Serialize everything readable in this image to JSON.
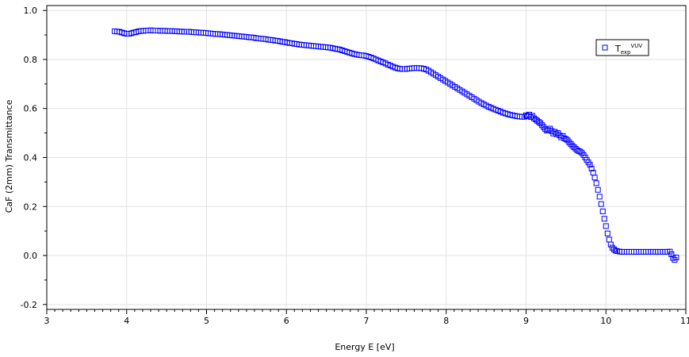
{
  "chart_data": {
    "type": "scatter",
    "title": "",
    "xlabel": "Energy E [eV]",
    "ylabel": "CaF (2mm) Transmittance",
    "xlim": [
      3,
      11
    ],
    "ylim": [
      -0.22,
      1.02
    ],
    "x_ticks": [
      3,
      4,
      5,
      6,
      7,
      8,
      9,
      10,
      11
    ],
    "x_tick_labels": [
      "3",
      "4",
      "5",
      "6",
      "7",
      "8",
      "9",
      "10",
      "11"
    ],
    "y_ticks": [
      -0.2,
      0.0,
      0.2,
      0.4,
      0.6,
      0.8,
      1.0
    ],
    "y_tick_labels": [
      "-0.2",
      "0.0",
      "0.2",
      "0.4",
      "0.6",
      "0.8",
      "1.0"
    ],
    "grid": true,
    "legend_position": "top-right",
    "series": [
      {
        "name_base": "T",
        "name_sub": "exp",
        "name_sup": "VUV",
        "color": "#0000ff",
        "marker": "open-square",
        "points": [
          [
            3.85,
            0.915
          ],
          [
            3.88,
            0.914
          ],
          [
            3.91,
            0.913
          ],
          [
            3.94,
            0.91
          ],
          [
            3.97,
            0.907
          ],
          [
            4.0,
            0.905
          ],
          [
            4.03,
            0.905
          ],
          [
            4.06,
            0.907
          ],
          [
            4.09,
            0.91
          ],
          [
            4.12,
            0.912
          ],
          [
            4.15,
            0.915
          ],
          [
            4.18,
            0.916
          ],
          [
            4.21,
            0.917
          ],
          [
            4.24,
            0.918
          ],
          [
            4.27,
            0.918
          ],
          [
            4.3,
            0.919
          ],
          [
            4.33,
            0.918
          ],
          [
            4.36,
            0.918
          ],
          [
            4.39,
            0.918
          ],
          [
            4.42,
            0.917
          ],
          [
            4.45,
            0.917
          ],
          [
            4.48,
            0.917
          ],
          [
            4.51,
            0.916
          ],
          [
            4.54,
            0.916
          ],
          [
            4.57,
            0.916
          ],
          [
            4.6,
            0.915
          ],
          [
            4.63,
            0.915
          ],
          [
            4.66,
            0.914
          ],
          [
            4.69,
            0.914
          ],
          [
            4.72,
            0.913
          ],
          [
            4.75,
            0.913
          ],
          [
            4.78,
            0.913
          ],
          [
            4.81,
            0.912
          ],
          [
            4.84,
            0.911
          ],
          [
            4.87,
            0.911
          ],
          [
            4.9,
            0.91
          ],
          [
            4.93,
            0.909
          ],
          [
            4.96,
            0.909
          ],
          [
            4.99,
            0.908
          ],
          [
            5.02,
            0.907
          ],
          [
            5.05,
            0.906
          ],
          [
            5.08,
            0.905
          ],
          [
            5.11,
            0.904
          ],
          [
            5.14,
            0.904
          ],
          [
            5.17,
            0.903
          ],
          [
            5.2,
            0.902
          ],
          [
            5.23,
            0.901
          ],
          [
            5.26,
            0.9
          ],
          [
            5.29,
            0.899
          ],
          [
            5.32,
            0.898
          ],
          [
            5.35,
            0.897
          ],
          [
            5.38,
            0.896
          ],
          [
            5.41,
            0.895
          ],
          [
            5.44,
            0.894
          ],
          [
            5.47,
            0.893
          ],
          [
            5.5,
            0.892
          ],
          [
            5.53,
            0.891
          ],
          [
            5.56,
            0.89
          ],
          [
            5.59,
            0.889
          ],
          [
            5.62,
            0.887
          ],
          [
            5.65,
            0.886
          ],
          [
            5.68,
            0.885
          ],
          [
            5.71,
            0.884
          ],
          [
            5.74,
            0.883
          ],
          [
            5.77,
            0.881
          ],
          [
            5.8,
            0.88
          ],
          [
            5.83,
            0.879
          ],
          [
            5.86,
            0.877
          ],
          [
            5.89,
            0.876
          ],
          [
            5.92,
            0.874
          ],
          [
            5.95,
            0.872
          ],
          [
            5.98,
            0.871
          ],
          [
            6.01,
            0.869
          ],
          [
            6.04,
            0.867
          ],
          [
            6.07,
            0.866
          ],
          [
            6.1,
            0.864
          ],
          [
            6.13,
            0.863
          ],
          [
            6.16,
            0.861
          ],
          [
            6.19,
            0.86
          ],
          [
            6.22,
            0.859
          ],
          [
            6.25,
            0.858
          ],
          [
            6.28,
            0.857
          ],
          [
            6.31,
            0.856
          ],
          [
            6.34,
            0.855
          ],
          [
            6.37,
            0.854
          ],
          [
            6.4,
            0.853
          ],
          [
            6.43,
            0.852
          ],
          [
            6.46,
            0.851
          ],
          [
            6.49,
            0.85
          ],
          [
            6.52,
            0.849
          ],
          [
            6.55,
            0.848
          ],
          [
            6.58,
            0.846
          ],
          [
            6.61,
            0.844
          ],
          [
            6.64,
            0.842
          ],
          [
            6.67,
            0.84
          ],
          [
            6.7,
            0.837
          ],
          [
            6.73,
            0.834
          ],
          [
            6.76,
            0.831
          ],
          [
            6.79,
            0.828
          ],
          [
            6.82,
            0.825
          ],
          [
            6.85,
            0.822
          ],
          [
            6.88,
            0.82
          ],
          [
            6.91,
            0.818
          ],
          [
            6.94,
            0.817
          ],
          [
            6.97,
            0.816
          ],
          [
            7.0,
            0.814
          ],
          [
            7.03,
            0.811
          ],
          [
            7.06,
            0.808
          ],
          [
            7.09,
            0.804
          ],
          [
            7.12,
            0.8
          ],
          [
            7.15,
            0.796
          ],
          [
            7.18,
            0.792
          ],
          [
            7.21,
            0.788
          ],
          [
            7.24,
            0.784
          ],
          [
            7.27,
            0.779
          ],
          [
            7.3,
            0.775
          ],
          [
            7.33,
            0.771
          ],
          [
            7.36,
            0.767
          ],
          [
            7.39,
            0.764
          ],
          [
            7.42,
            0.762
          ],
          [
            7.45,
            0.761
          ],
          [
            7.48,
            0.761
          ],
          [
            7.51,
            0.762
          ],
          [
            7.54,
            0.763
          ],
          [
            7.57,
            0.764
          ],
          [
            7.6,
            0.765
          ],
          [
            7.63,
            0.765
          ],
          [
            7.66,
            0.765
          ],
          [
            7.69,
            0.764
          ],
          [
            7.72,
            0.762
          ],
          [
            7.75,
            0.759
          ],
          [
            7.78,
            0.754
          ],
          [
            7.81,
            0.748
          ],
          [
            7.84,
            0.742
          ],
          [
            7.87,
            0.736
          ],
          [
            7.9,
            0.73
          ],
          [
            7.93,
            0.724
          ],
          [
            7.96,
            0.718
          ],
          [
            7.99,
            0.712
          ],
          [
            8.02,
            0.706
          ],
          [
            8.05,
            0.7
          ],
          [
            8.08,
            0.694
          ],
          [
            8.11,
            0.688
          ],
          [
            8.14,
            0.682
          ],
          [
            8.17,
            0.676
          ],
          [
            8.2,
            0.67
          ],
          [
            8.23,
            0.664
          ],
          [
            8.26,
            0.658
          ],
          [
            8.29,
            0.652
          ],
          [
            8.32,
            0.646
          ],
          [
            8.35,
            0.64
          ],
          [
            8.38,
            0.634
          ],
          [
            8.41,
            0.628
          ],
          [
            8.44,
            0.622
          ],
          [
            8.47,
            0.617
          ],
          [
            8.5,
            0.612
          ],
          [
            8.53,
            0.607
          ],
          [
            8.56,
            0.603
          ],
          [
            8.59,
            0.599
          ],
          [
            8.62,
            0.595
          ],
          [
            8.65,
            0.591
          ],
          [
            8.68,
            0.587
          ],
          [
            8.71,
            0.583
          ],
          [
            8.74,
            0.58
          ],
          [
            8.77,
            0.577
          ],
          [
            8.8,
            0.574
          ],
          [
            8.83,
            0.572
          ],
          [
            8.86,
            0.57
          ],
          [
            8.89,
            0.568
          ],
          [
            8.92,
            0.567
          ],
          [
            8.95,
            0.566
          ],
          [
            8.98,
            0.566
          ],
          [
            9.0,
            0.572
          ],
          [
            9.02,
            0.569
          ],
          [
            9.04,
            0.575
          ],
          [
            9.06,
            0.565
          ],
          [
            9.08,
            0.57
          ],
          [
            9.1,
            0.56
          ],
          [
            9.12,
            0.555
          ],
          [
            9.14,
            0.55
          ],
          [
            9.16,
            0.545
          ],
          [
            9.18,
            0.54
          ],
          [
            9.2,
            0.532
          ],
          [
            9.22,
            0.524
          ],
          [
            9.24,
            0.516
          ],
          [
            9.26,
            0.51
          ],
          [
            9.28,
            0.512
          ],
          [
            9.3,
            0.518
          ],
          [
            9.32,
            0.508
          ],
          [
            9.34,
            0.498
          ],
          [
            9.36,
            0.505
          ],
          [
            9.38,
            0.495
          ],
          [
            9.4,
            0.5
          ],
          [
            9.42,
            0.49
          ],
          [
            9.44,
            0.482
          ],
          [
            9.46,
            0.488
          ],
          [
            9.48,
            0.478
          ],
          [
            9.5,
            0.475
          ],
          [
            9.52,
            0.47
          ],
          [
            9.54,
            0.462
          ],
          [
            9.56,
            0.455
          ],
          [
            9.58,
            0.448
          ],
          [
            9.6,
            0.442
          ],
          [
            9.62,
            0.436
          ],
          [
            9.64,
            0.43
          ],
          [
            9.66,
            0.426
          ],
          [
            9.68,
            0.424
          ],
          [
            9.7,
            0.418
          ],
          [
            9.72,
            0.41
          ],
          [
            9.74,
            0.4
          ],
          [
            9.76,
            0.39
          ],
          [
            9.78,
            0.38
          ],
          [
            9.8,
            0.37
          ],
          [
            9.82,
            0.355
          ],
          [
            9.84,
            0.338
          ],
          [
            9.86,
            0.318
          ],
          [
            9.88,
            0.295
          ],
          [
            9.9,
            0.268
          ],
          [
            9.92,
            0.24
          ],
          [
            9.94,
            0.21
          ],
          [
            9.96,
            0.18
          ],
          [
            9.98,
            0.15
          ],
          [
            10.0,
            0.12
          ],
          [
            10.02,
            0.09
          ],
          [
            10.04,
            0.065
          ],
          [
            10.06,
            0.045
          ],
          [
            10.08,
            0.032
          ],
          [
            10.1,
            0.025
          ],
          [
            10.12,
            0.02
          ],
          [
            10.14,
            0.018
          ],
          [
            10.17,
            0.016
          ],
          [
            10.2,
            0.015
          ],
          [
            10.23,
            0.015
          ],
          [
            10.26,
            0.015
          ],
          [
            10.29,
            0.015
          ],
          [
            10.32,
            0.015
          ],
          [
            10.35,
            0.015
          ],
          [
            10.38,
            0.015
          ],
          [
            10.41,
            0.015
          ],
          [
            10.44,
            0.015
          ],
          [
            10.47,
            0.015
          ],
          [
            10.5,
            0.015
          ],
          [
            10.53,
            0.015
          ],
          [
            10.56,
            0.015
          ],
          [
            10.59,
            0.015
          ],
          [
            10.62,
            0.015
          ],
          [
            10.65,
            0.015
          ],
          [
            10.68,
            0.015
          ],
          [
            10.71,
            0.015
          ],
          [
            10.74,
            0.015
          ],
          [
            10.77,
            0.015
          ],
          [
            10.8,
            0.016
          ],
          [
            10.82,
            0.005
          ],
          [
            10.84,
            -0.01
          ],
          [
            10.86,
            -0.018
          ],
          [
            10.88,
            -0.008
          ]
        ]
      }
    ]
  }
}
